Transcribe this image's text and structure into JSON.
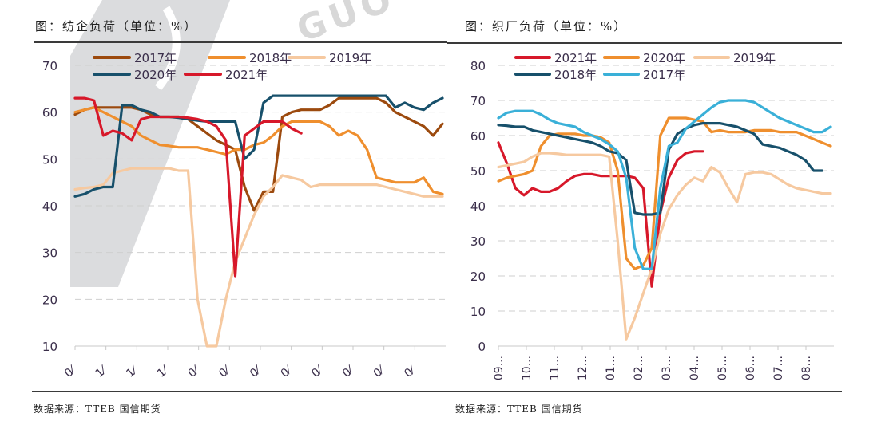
{
  "left": {
    "title": "图：纺企负荷（单位：%）",
    "source": "数据来源：TTEB   国信期货"
  },
  "right": {
    "title": "图：织厂负荷（单位：%）",
    "source": "数据来源：TTEB   国信期货"
  },
  "watermark": "GUO",
  "chart_data": [
    {
      "type": "line",
      "title": "图：纺企负荷（单位：%）",
      "xlabel": "",
      "ylabel": "%",
      "ylim": [
        10,
        70
      ],
      "yticks": [
        10,
        20,
        30,
        40,
        50,
        60,
        70
      ],
      "grid": true,
      "legend_position": "top-left inside",
      "categories": [
        "0⁄",
        "1⁄",
        "1⁄",
        "1⁄",
        "0⁄",
        "0⁄",
        "0⁄",
        "0⁄",
        "0⁄",
        "0⁄",
        "0⁄",
        "0⁄"
      ],
      "series": [
        {
          "name": "2017年",
          "color": "#9c4a0e",
          "values": [
            59.5,
            60.5,
            61,
            61,
            61,
            61,
            61,
            60.5,
            59.5,
            59,
            59,
            59,
            58.5,
            57,
            55.5,
            54,
            53,
            52,
            44,
            39,
            43,
            43,
            59,
            60,
            60.5,
            60.5,
            60.5,
            61.5,
            63,
            63,
            63,
            63,
            63,
            62,
            60,
            59,
            58,
            57,
            55,
            57.5
          ]
        },
        {
          "name": "2018年",
          "color": "#ef8f2e",
          "values": [
            60,
            60.5,
            61,
            60,
            59,
            58,
            57,
            55,
            54,
            53,
            52.8,
            52.5,
            52.5,
            52.5,
            52,
            51.5,
            51,
            52,
            52,
            53,
            53.5,
            55,
            57,
            58,
            58,
            58,
            58,
            57,
            55,
            56,
            55,
            52,
            46,
            45.5,
            45,
            45,
            45,
            46,
            43,
            42.5
          ]
        },
        {
          "name": "2019年",
          "color": "#f6c9a0",
          "values": [
            43.5,
            43.8,
            44,
            44.5,
            47,
            47.5,
            48,
            48,
            48,
            48,
            48,
            47.5,
            47.5,
            20,
            10,
            10,
            20,
            28,
            33,
            38,
            42,
            44,
            46.5,
            46,
            45.5,
            44,
            44.5,
            44.5,
            44.5,
            44.5,
            44.5,
            44.5,
            44.5,
            44,
            43.5,
            43,
            42.5,
            42,
            42,
            42
          ]
        },
        {
          "name": "2020年",
          "color": "#17506b",
          "values": [
            42,
            42.5,
            43.5,
            44,
            44,
            61.5,
            61.5,
            60.5,
            60,
            59,
            59,
            58.8,
            58.5,
            58.2,
            58,
            58,
            58,
            58,
            50,
            52,
            62,
            63.5,
            63.5,
            63.5,
            63.5,
            63.5,
            63.5,
            63.5,
            63.5,
            63.5,
            63.5,
            63.5,
            63.5,
            63.5,
            61,
            62,
            61,
            60.5,
            62,
            63
          ]
        },
        {
          "name": "2021年",
          "color": "#d7182a",
          "values": [
            63,
            63,
            62.5,
            55,
            56,
            55.5,
            54,
            58.5,
            59,
            59,
            59,
            59,
            58.8,
            58.5,
            58,
            57,
            54,
            25,
            55,
            56.5,
            58,
            58,
            58,
            56.5,
            55.5
          ]
        }
      ]
    },
    {
      "type": "line",
      "title": "图：织厂负荷（单位：%）",
      "xlabel": "",
      "ylabel": "%",
      "ylim": [
        0,
        80
      ],
      "yticks": [
        0,
        10,
        20,
        30,
        40,
        50,
        60,
        70,
        80
      ],
      "grid": true,
      "legend_position": "top-left inside",
      "categories": [
        "09...",
        "10...",
        "11...",
        "12...",
        "01...",
        "02...",
        "03...",
        "04...",
        "05...",
        "06...",
        "07...",
        "08..."
      ],
      "series": [
        {
          "name": "2021年",
          "color": "#d7182a",
          "values": [
            58,
            52,
            45,
            43,
            45,
            44,
            44,
            45,
            47,
            48.5,
            49,
            49,
            48.5,
            48.5,
            48.5,
            48.5,
            48,
            45,
            17,
            38,
            48,
            53,
            55,
            55.5,
            55.5
          ]
        },
        {
          "name": "2020年",
          "color": "#ef8f2e",
          "values": [
            47,
            48,
            48.5,
            49,
            50,
            57,
            60,
            60.5,
            60.5,
            60.5,
            60,
            60,
            59.5,
            58,
            50,
            25,
            22,
            23,
            28,
            60,
            65,
            65,
            65,
            64.5,
            64,
            61,
            61.5,
            61,
            61,
            61,
            61.5,
            61.5,
            61.5,
            61,
            61,
            61,
            60,
            59,
            58,
            57
          ]
        },
        {
          "name": "2019年",
          "color": "#f6c9a0",
          "values": [
            51,
            51.5,
            52,
            52.5,
            54,
            55,
            55,
            54.8,
            54.5,
            54.5,
            54.5,
            54.5,
            54.5,
            54,
            30,
            2,
            8,
            15,
            22,
            32,
            39,
            43,
            46,
            48,
            47,
            51,
            49.5,
            45,
            41,
            49,
            49.5,
            49.5,
            49,
            47.5,
            46,
            45,
            44.5,
            44,
            43.5,
            43.5
          ]
        },
        {
          "name": "2018年",
          "color": "#17506b",
          "values": [
            63,
            62.8,
            62.5,
            62.5,
            61.5,
            61,
            60.5,
            60,
            59.5,
            59,
            58.5,
            58,
            57,
            55.5,
            55,
            53,
            38,
            37.5,
            37.5,
            38,
            56,
            60.5,
            62,
            63,
            63.5,
            63.5,
            63.5,
            63,
            62.5,
            61.5,
            60.5,
            57.5,
            57,
            56.5,
            55.5,
            54.5,
            53,
            50,
            50
          ]
        },
        {
          "name": "2017年",
          "color": "#3ab0d8",
          "values": [
            65,
            66.5,
            67,
            67,
            67,
            66,
            64.5,
            63.5,
            63,
            62.5,
            61,
            60,
            59,
            57.5,
            55.5,
            48,
            28,
            22,
            22,
            45,
            57,
            58,
            62,
            64,
            66,
            68,
            69.5,
            70,
            70,
            70,
            69.5,
            68,
            66.5,
            65,
            64,
            63,
            62,
            61,
            61,
            62.5
          ]
        }
      ]
    }
  ]
}
